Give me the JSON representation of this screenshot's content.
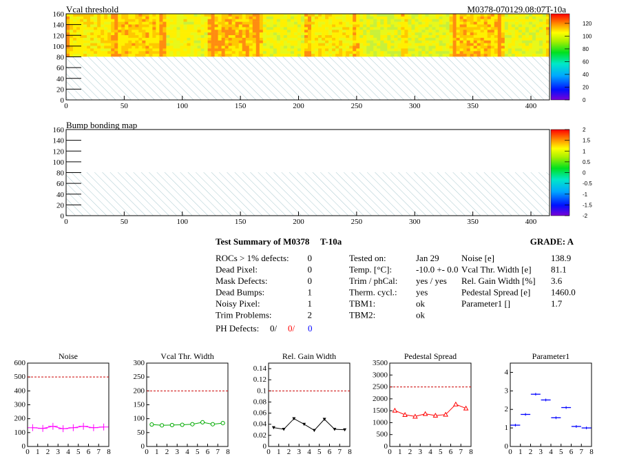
{
  "header": {
    "map1_title": "Vcal threshold",
    "module_label": "M0378-070129.08:07T-10a",
    "map2_title": "Bump bonding map"
  },
  "maps": {
    "x_ticks": [
      "0",
      "50",
      "100",
      "150",
      "200",
      "250",
      "300",
      "350",
      "400"
    ],
    "y_ticks": [
      "0",
      "20",
      "40",
      "60",
      "80",
      "100",
      "120",
      "140",
      "160"
    ],
    "colorbar1_ticks": [
      "0",
      "20",
      "40",
      "60",
      "80",
      "100",
      "120"
    ],
    "colorbar2_ticks": [
      "-2",
      "-1.5",
      "-1",
      "-0.5",
      "0",
      "0.5",
      "1",
      "1.5",
      "2"
    ]
  },
  "summary": {
    "title": "Test Summary of M0378",
    "temp_tag": "T-10a",
    "grade": "GRADE:  A",
    "left_rows": [
      {
        "label": "ROCs > 1% defects:",
        "value": "0"
      },
      {
        "label": "Dead Pixel:",
        "value": "0"
      },
      {
        "label": "Mask Defects:",
        "value": "0"
      },
      {
        "label": "Dead Bumps:",
        "value": "1"
      },
      {
        "label": "Noisy Pixel:",
        "value": "1"
      },
      {
        "label": "Trim Problems:",
        "value": "2"
      }
    ],
    "ph_label": "PH Defects:",
    "ph_values": [
      "0/",
      "0/",
      "0"
    ],
    "ph_colors": [
      "#000000",
      "#ff0000",
      "#0000ff"
    ],
    "mid_rows": [
      {
        "label": "Tested on:",
        "value": "Jan 29"
      },
      {
        "label": "Temp. [°C]:",
        "value": "-10.0 +- 0.0"
      },
      {
        "label": "Trim / phCal:",
        "value": "yes / yes"
      },
      {
        "label": "Therm. cycl.:",
        "value": "yes"
      },
      {
        "label": "TBM1:",
        "value": "ok"
      },
      {
        "label": "TBM2:",
        "value": "ok"
      }
    ],
    "right_rows": [
      {
        "label": "Noise [e]",
        "value": "138.9"
      },
      {
        "label": "Vcal Thr. Width [e]",
        "value": "81.1"
      },
      {
        "label": "Rel. Gain Width [%]",
        "value": "3.6"
      },
      {
        "label": "Pedestal Spread [e]",
        "value": "1460.0"
      },
      {
        "label": "Parameter1 []",
        "value": "1.7"
      }
    ]
  },
  "chart_data": [
    {
      "type": "scatter",
      "title": "Noise",
      "x": [
        0.5,
        1.5,
        2.5,
        3.5,
        4.5,
        5.5,
        6.5,
        7.5
      ],
      "values": [
        135,
        130,
        145,
        128,
        135,
        145,
        135,
        140
      ],
      "xlim": [
        0,
        8
      ],
      "ylim": [
        0,
        600
      ],
      "y_ticks": [
        0,
        100,
        200,
        300,
        400,
        500,
        600
      ],
      "x_ticks": [
        0,
        1,
        2,
        3,
        4,
        5,
        6,
        7,
        8
      ],
      "limit": 500,
      "color": "#ff00ff",
      "marker": "cross"
    },
    {
      "type": "line",
      "title": "Vcal Thr. Width",
      "x": [
        0.5,
        1.5,
        2.5,
        3.5,
        4.5,
        5.5,
        6.5,
        7.5
      ],
      "values": [
        79,
        76,
        77,
        78,
        80,
        87,
        80,
        84
      ],
      "xlim": [
        0,
        8
      ],
      "ylim": [
        0,
        300
      ],
      "y_ticks": [
        0,
        50,
        100,
        150,
        200,
        250,
        300
      ],
      "x_ticks": [
        0,
        1,
        2,
        3,
        4,
        5,
        6,
        7,
        8
      ],
      "limit": 200,
      "color": "#00aa00",
      "marker": "circle"
    },
    {
      "type": "line",
      "title": "Rel. Gain Width",
      "x": [
        0.5,
        1.5,
        2.5,
        3.5,
        4.5,
        5.5,
        6.5,
        7.5
      ],
      "values": [
        0.034,
        0.031,
        0.05,
        0.04,
        0.029,
        0.049,
        0.031,
        0.03
      ],
      "xlim": [
        0,
        8
      ],
      "ylim": [
        0,
        0.15
      ],
      "y_ticks": [
        0,
        0.02,
        0.04,
        0.06,
        0.08,
        0.1,
        0.12,
        0.14
      ],
      "x_ticks": [
        0,
        1,
        2,
        3,
        4,
        5,
        6,
        7,
        8
      ],
      "limit": 0.1,
      "color": "#000000",
      "marker": "triangle-down"
    },
    {
      "type": "line",
      "title": "Pedestal Spread",
      "x": [
        0.5,
        1.5,
        2.5,
        3.5,
        4.5,
        5.5,
        6.5,
        7.5
      ],
      "values": [
        1510,
        1330,
        1260,
        1370,
        1300,
        1340,
        1770,
        1600
      ],
      "xlim": [
        0,
        8
      ],
      "ylim": [
        0,
        3500
      ],
      "y_ticks": [
        0,
        500,
        1000,
        1500,
        2000,
        2500,
        3000,
        3500
      ],
      "x_ticks": [
        0,
        1,
        2,
        3,
        4,
        5,
        6,
        7,
        8
      ],
      "limit": 2500,
      "color": "#ff0000",
      "marker": "triangle-up"
    },
    {
      "type": "scatter",
      "title": "Parameter1",
      "x": [
        0.5,
        1.5,
        2.5,
        3.5,
        4.5,
        5.5,
        6.5,
        7.5
      ],
      "values": [
        1.15,
        1.73,
        2.82,
        2.51,
        1.55,
        2.1,
        1.08,
        1.0
      ],
      "xlim": [
        0,
        8
      ],
      "ylim": [
        0,
        4.5
      ],
      "y_ticks": [
        0,
        1,
        2,
        3,
        4
      ],
      "x_ticks": [
        0,
        1,
        2,
        3,
        4,
        5,
        6,
        7,
        8
      ],
      "limit": null,
      "color": "#0000ff",
      "marker": "hbar"
    }
  ]
}
